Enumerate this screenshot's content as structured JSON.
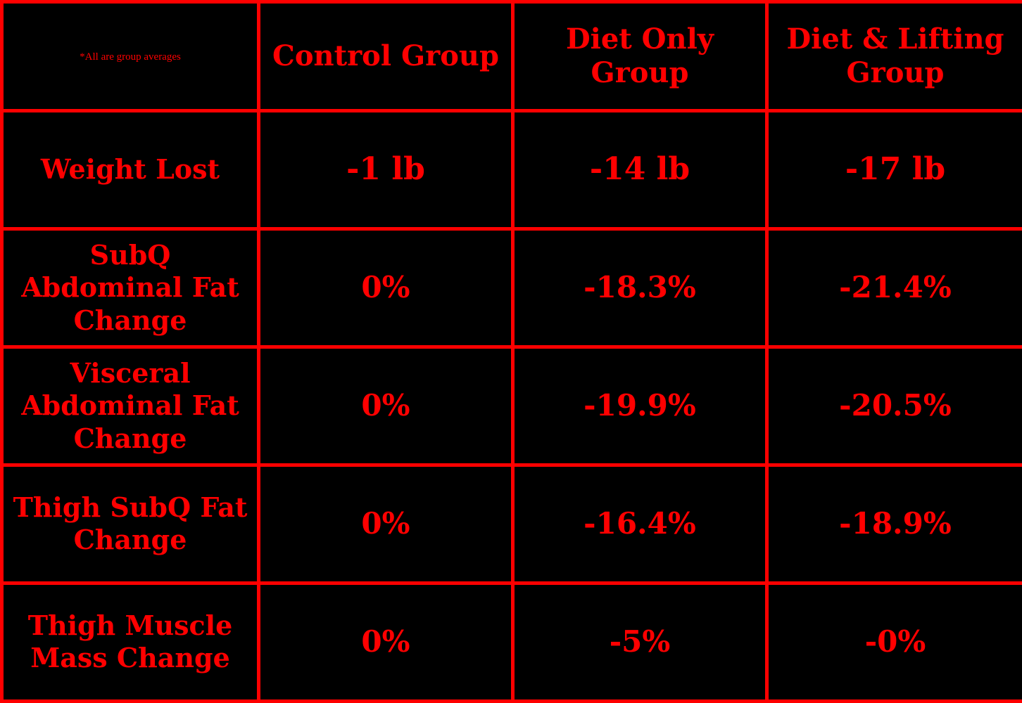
{
  "chart_data": {
    "type": "table",
    "note": "*All are group averages",
    "columns": [
      "Control Group",
      "Diet Only Group",
      "Diet & Lifting Group"
    ],
    "rows": [
      {
        "label": "Weight Lost",
        "values": [
          "-1 lb",
          "-14 lb",
          "-17 lb"
        ]
      },
      {
        "label": "SubQ Abdominal Fat Change",
        "values": [
          "0%",
          "-18.3%",
          "-21.4%"
        ]
      },
      {
        "label": "Visceral Abdominal Fat Change",
        "values": [
          "0%",
          "-19.9%",
          "-20.5%"
        ]
      },
      {
        "label": "Thigh SubQ Fat Change",
        "values": [
          "0%",
          "-16.4%",
          "-18.9%"
        ]
      },
      {
        "label": "Thigh Muscle Mass Change",
        "values": [
          "0%",
          "-5%",
          "-0%"
        ]
      }
    ],
    "colors": {
      "background": "#000000",
      "text": "#ff0000",
      "border": "#ff0000"
    }
  }
}
